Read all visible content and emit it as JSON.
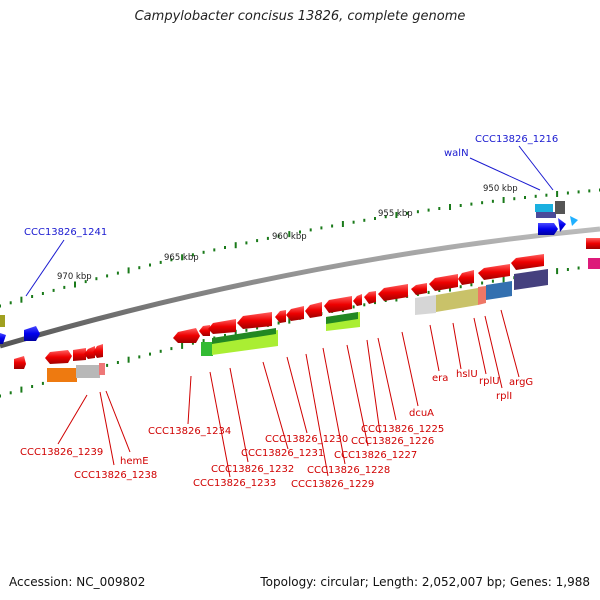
{
  "title": "Campylobacter concisus 13826, complete genome",
  "footer": {
    "accession": "Accession: NC_009802",
    "summary": "Topology: circular; Length: 2,052,007 bp; Genes: 1,988"
  },
  "scale_labels": [
    "950 kbp",
    "955 kbp",
    "960 kbp",
    "965 kbp",
    "970 kbp"
  ],
  "upper_labels": [
    "CCC13826_1216",
    "walN",
    "CCC13826_1241"
  ],
  "lower_labels": [
    "era",
    "hslU",
    "rplU",
    "argG",
    "rplI",
    "dcuA",
    "CCC13826_1225",
    "CCC13826_1226",
    "CCC13826_1227",
    "CCC13826_1228",
    "CCC13826_1229",
    "CCC13826_1230",
    "CCC13826_1231",
    "CCC13826_1232",
    "CCC13826_1233",
    "CCC13826_1234",
    "CCC13826_1239",
    "CCC13826_1238",
    "hemE"
  ],
  "colors": {
    "backbone": "#888888",
    "forward_gene": "#1010e0",
    "reverse_gene": "#e00000",
    "tick": "#1a7a1a",
    "rrna": "#33aa33",
    "label_red": "#d00000",
    "label_blue": "#1a1ad0"
  }
}
